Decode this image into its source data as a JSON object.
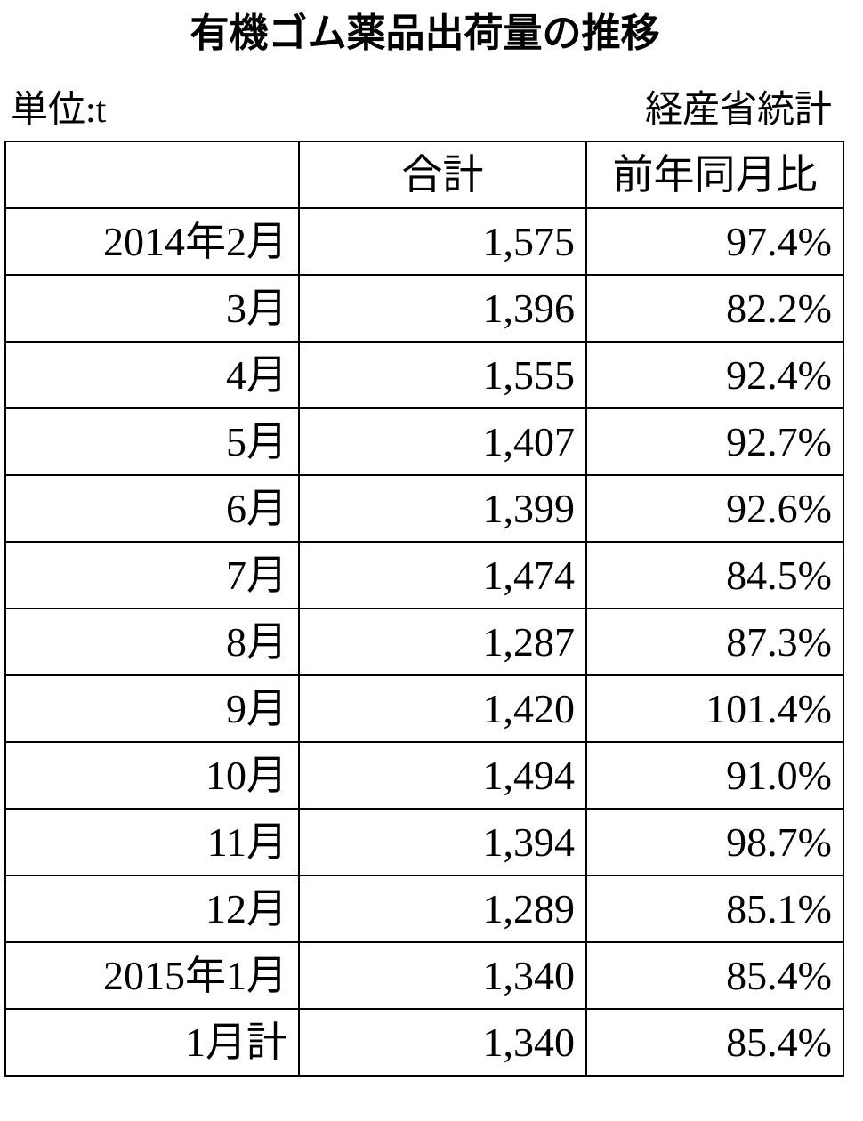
{
  "header": {
    "title": "有機ゴム薬品出荷量の推移",
    "unit": "単位:t",
    "source": "経産省統計"
  },
  "table": {
    "header": [
      "合計",
      "前年同月比"
    ],
    "rows": [
      [
        "2014年2月",
        "1,575",
        "97.4%"
      ],
      [
        "3月",
        "1,396",
        "82.2%"
      ],
      [
        "4月",
        "1,555",
        "92.4%"
      ],
      [
        "5月",
        "1,407",
        "92.7%"
      ],
      [
        "6月",
        "1,399",
        "92.6%"
      ],
      [
        "7月",
        "1,474",
        "84.5%"
      ],
      [
        "8月",
        "1,287",
        "87.3%"
      ],
      [
        "9月",
        "1,420",
        "101.4%"
      ],
      [
        "10月",
        "1,494",
        "91.0%"
      ],
      [
        "11月",
        "1,394",
        "98.7%"
      ],
      [
        "12月",
        "1,289",
        "85.1%"
      ],
      [
        "2015年1月",
        "1,340",
        "85.4%"
      ],
      [
        "1月計",
        "1,340",
        "85.4%"
      ]
    ]
  }
}
